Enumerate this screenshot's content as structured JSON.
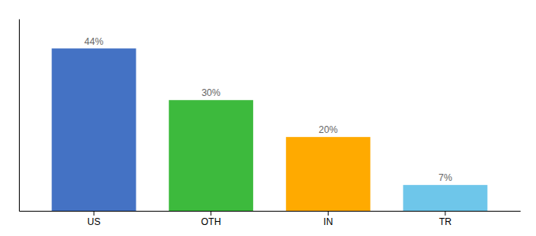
{
  "chart_data": {
    "type": "bar",
    "categories": [
      "US",
      "OTH",
      "IN",
      "TR"
    ],
    "values": [
      44,
      30,
      20,
      7
    ],
    "value_labels": [
      "44%",
      "30%",
      "20%",
      "7%"
    ],
    "colors": [
      "#4472c4",
      "#3dba3d",
      "#ffaa00",
      "#6ec6ea"
    ],
    "ylim": [
      0,
      52
    ],
    "grid": false,
    "data_labels": true,
    "tick_labels": "x"
  }
}
